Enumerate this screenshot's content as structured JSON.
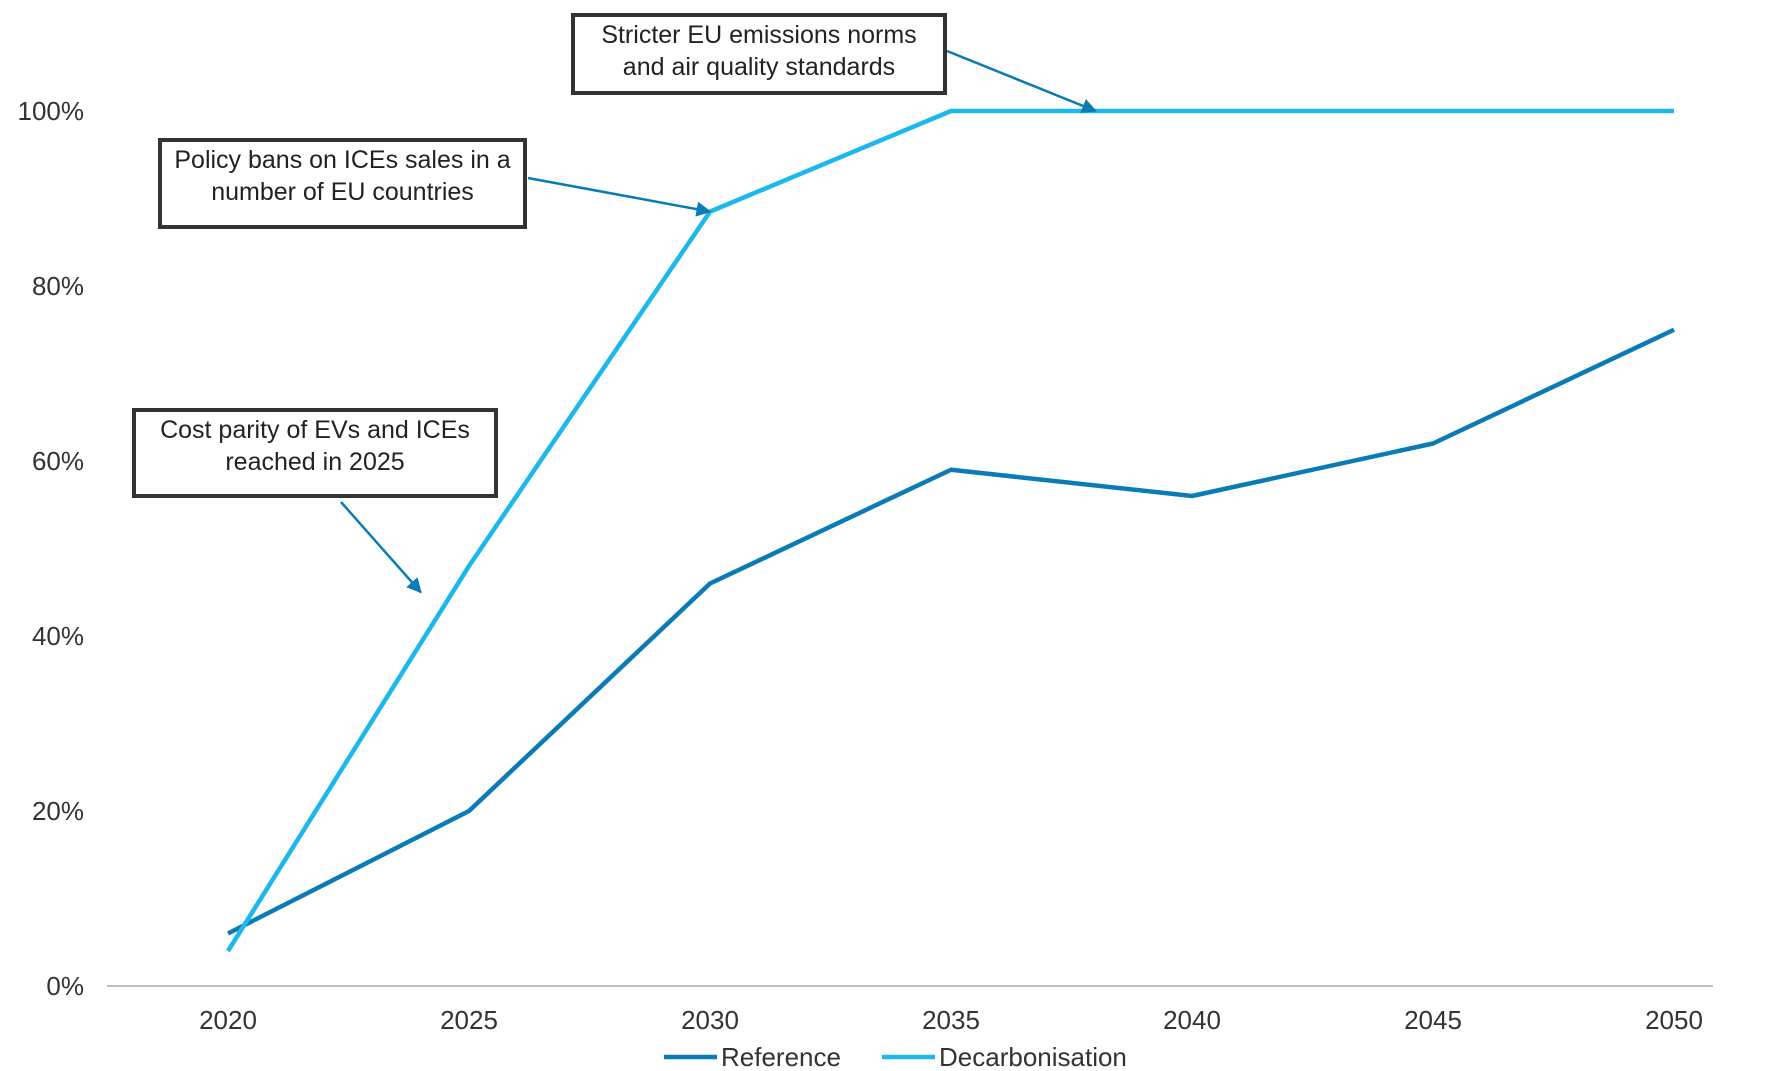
{
  "chart_data": {
    "type": "line",
    "categories": [
      "2020",
      "2025",
      "2030",
      "2035",
      "2040",
      "2045",
      "2050"
    ],
    "ylim": [
      0,
      100
    ],
    "yticks": [
      "0%",
      "20%",
      "40%",
      "60%",
      "80%",
      "100%"
    ],
    "grid": false,
    "legend_placement": "bottom",
    "series": [
      {
        "name": "Reference",
        "color": "#0a7bb5",
        "values": [
          6,
          20,
          46,
          59,
          56,
          62,
          75
        ]
      },
      {
        "name": "Decarbonisation",
        "color": "#1cb8ec",
        "values": [
          4,
          48,
          88.5,
          100,
          100,
          100,
          100
        ]
      }
    ],
    "annotations": [
      {
        "lines": [
          "Stricter EU emissions norms",
          "and air quality standards"
        ],
        "x": "2038",
        "y": 100
      },
      {
        "lines": [
          "Policy bans on ICEs sales in a",
          "number of EU countries"
        ],
        "x": "2030",
        "y": 88.5
      },
      {
        "lines": [
          "Cost parity of EVs and ICEs",
          "reached in 2025"
        ],
        "x": "2024",
        "y": 45
      }
    ]
  },
  "colors": {
    "axis": "#bfbfbf",
    "text": "#333333",
    "arrow": "#0a7bb5"
  }
}
